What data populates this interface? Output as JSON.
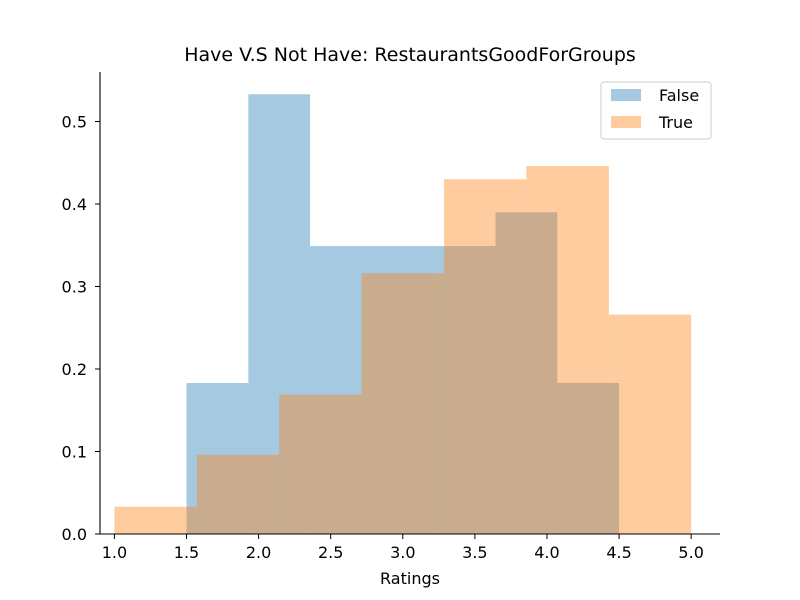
{
  "chart_data": {
    "type": "histogram",
    "title": "Have V.S Not Have: RestaurantsGoodForGroups",
    "xlabel": "Ratings",
    "ylabel": "",
    "xlim": [
      0.9,
      5.2
    ],
    "ylim": [
      0,
      0.56
    ],
    "xticks": [
      1.0,
      1.5,
      2.0,
      2.5,
      3.0,
      3.5,
      4.0,
      4.5,
      5.0
    ],
    "xtick_labels": [
      "1.0",
      "1.5",
      "2.0",
      "2.5",
      "3.0",
      "3.5",
      "4.0",
      "4.5",
      "5.0"
    ],
    "yticks": [
      0.0,
      0.1,
      0.2,
      0.3,
      0.4,
      0.5
    ],
    "ytick_labels": [
      "0.0",
      "0.1",
      "0.2",
      "0.3",
      "0.4",
      "0.5"
    ],
    "grid": false,
    "legend_position": "top-right",
    "series": [
      {
        "name": "False",
        "color": "#1f77b4",
        "opacity": 0.4,
        "bin_edges": [
          1.5,
          1.929,
          2.357,
          2.786,
          3.214,
          3.643,
          4.071,
          4.5
        ],
        "values": [
          0.183,
          0.533,
          0.349,
          0.349,
          0.349,
          0.39,
          0.183
        ]
      },
      {
        "name": "True",
        "color": "#ff7f0e",
        "opacity": 0.4,
        "bin_edges": [
          1.0,
          1.571,
          2.143,
          2.714,
          3.286,
          3.857,
          4.429,
          5.0
        ],
        "values": [
          0.033,
          0.096,
          0.169,
          0.316,
          0.43,
          0.446,
          0.266
        ]
      }
    ]
  }
}
